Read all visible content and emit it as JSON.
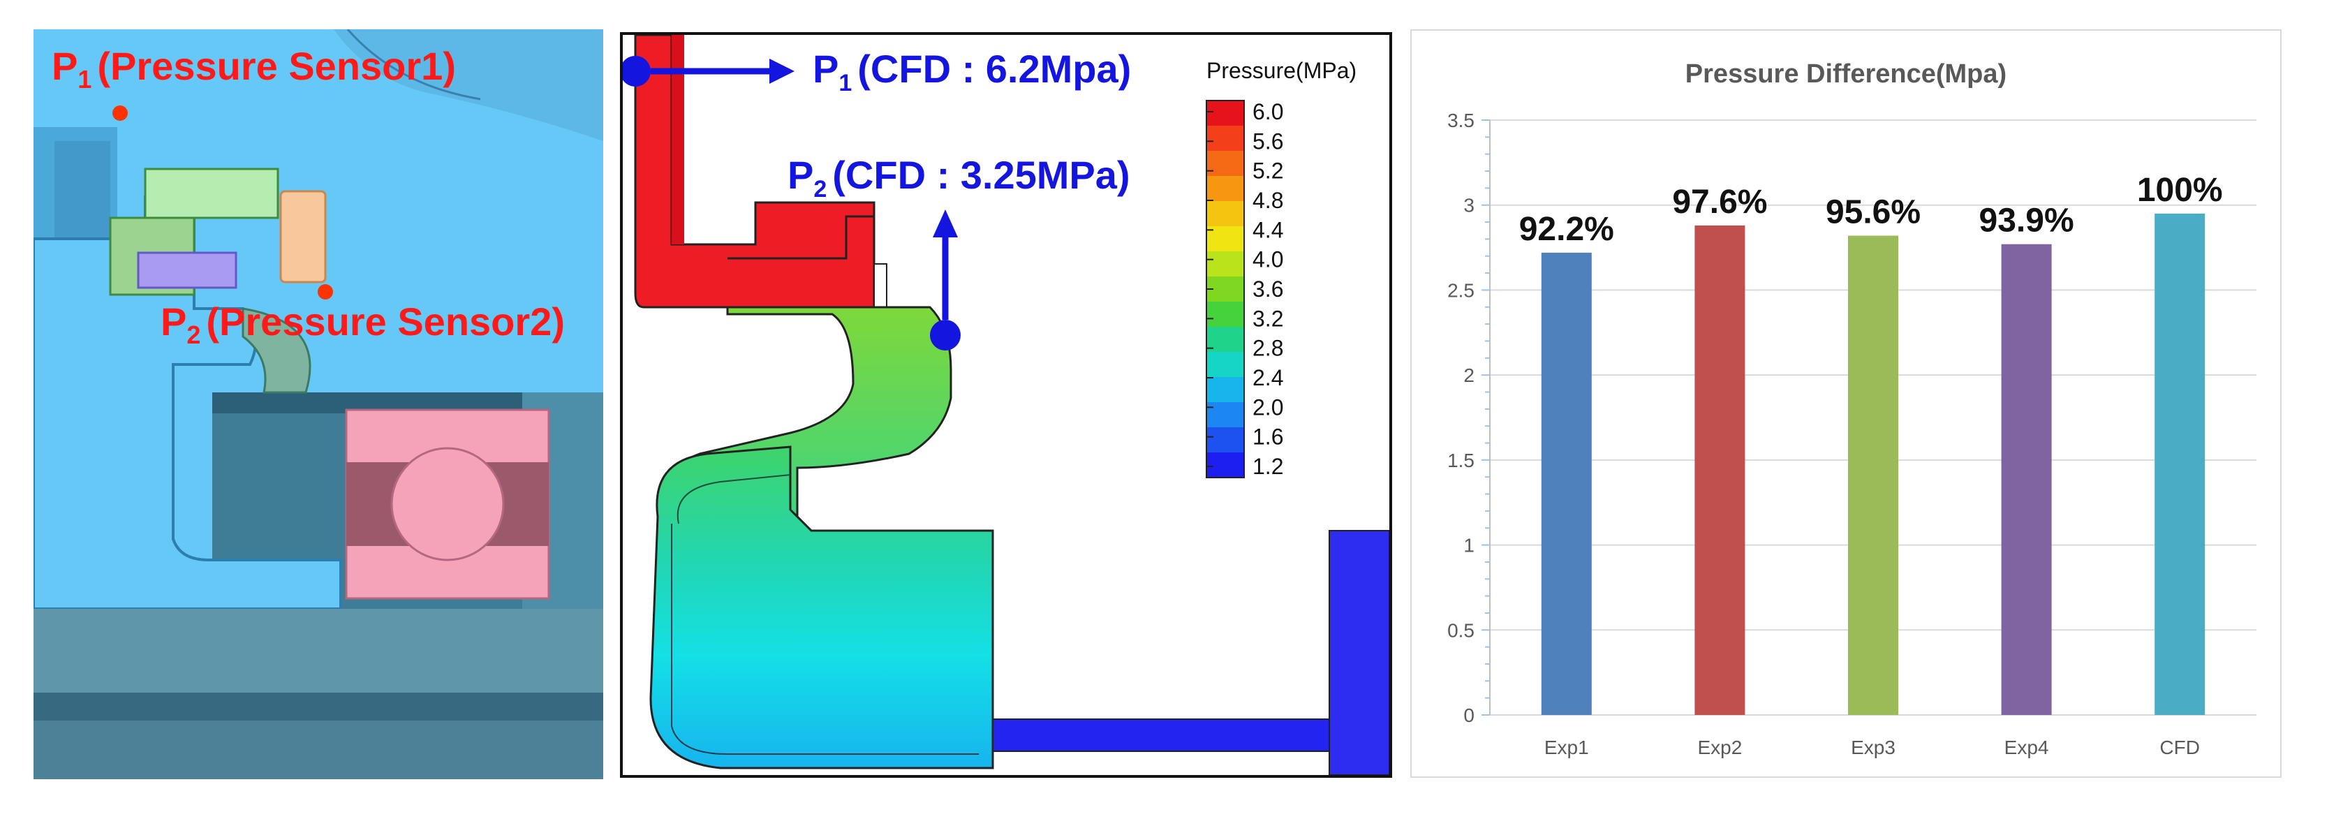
{
  "cad_panel": {
    "p1_sub": "1",
    "p1_label": "(Pressure Sensor1)",
    "p2_sub": "2",
    "p2_label": "(Pressure Sensor2)",
    "colors": {
      "label": "#ff1a1a",
      "body": "#66c8f6",
      "ring": "#f5a3b8"
    }
  },
  "cfd_panel": {
    "p1_sub": "1",
    "p1_label": "(CFD : 6.2Mpa)",
    "p2_sub": "2",
    "p2_label": "(CFD : 3.25MPa)",
    "legend_title": "Pressure(MPa)",
    "legend_ticks": [
      "6.0",
      "5.6",
      "5.2",
      "4.8",
      "4.4",
      "4.0",
      "3.6",
      "3.2",
      "2.8",
      "2.4",
      "2.0",
      "1.6",
      "1.2"
    ],
    "legend_colors": [
      "#e6131a",
      "#f4401a",
      "#f56a14",
      "#f79611",
      "#f5c411",
      "#eee512",
      "#b9e31a",
      "#7fd81f",
      "#46d23c",
      "#1fd38a",
      "#14d5c6",
      "#18b5ec",
      "#1c86f2",
      "#1d52f0",
      "#1c1ff0"
    ],
    "arrow_color": "#1515e0"
  },
  "chart_data": {
    "type": "bar",
    "title": "Pressure Difference(Mpa)",
    "categories": [
      "Exp1",
      "Exp2",
      "Exp3",
      "Exp4",
      "CFD"
    ],
    "values": [
      2.72,
      2.88,
      2.82,
      2.77,
      2.95
    ],
    "data_labels": [
      "92.2%",
      "97.6%",
      "95.6%",
      "93.9%",
      "100%"
    ],
    "colors": [
      "#4f81bd",
      "#c0504d",
      "#9bbb59",
      "#8064a2",
      "#4bacc6"
    ],
    "ylim": [
      0,
      3.5
    ],
    "yticks": [
      0,
      0.5,
      1,
      1.5,
      2,
      2.5,
      3,
      3.5
    ],
    "ytick_labels": [
      "0",
      "0.5",
      "1",
      "1.5",
      "2",
      "2.5",
      "3",
      "3.5"
    ],
    "grid": true,
    "legend": "none",
    "xlabel": "",
    "ylabel": ""
  }
}
